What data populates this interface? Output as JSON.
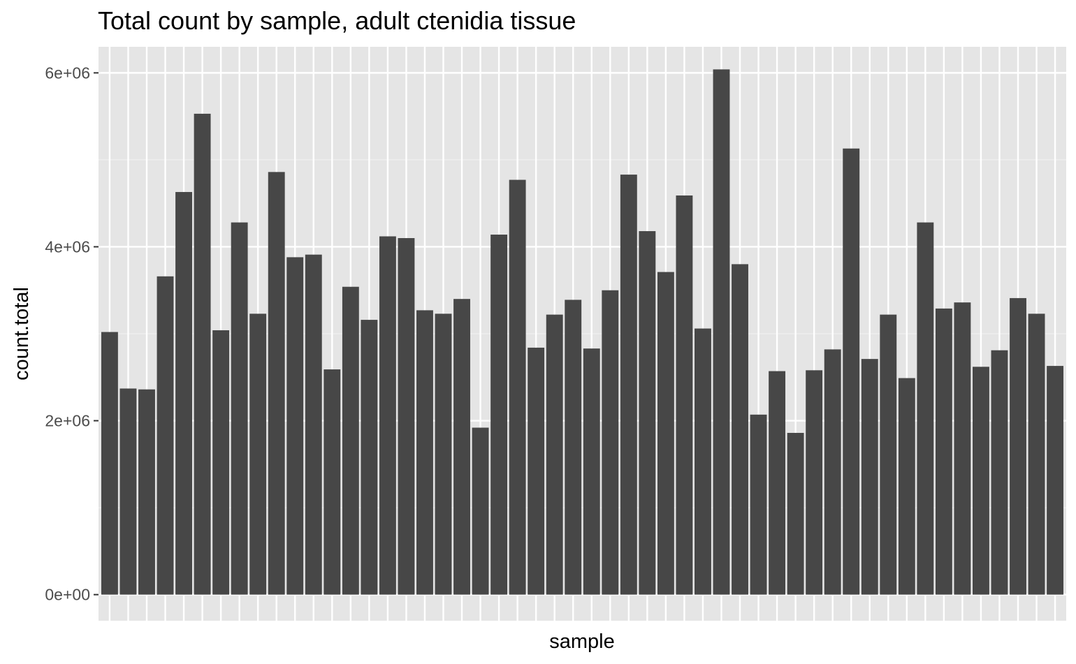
{
  "chart_data": {
    "type": "bar",
    "title": "Total count by sample, adult ctenidia tissue",
    "xlabel": "sample",
    "ylabel": "count.total",
    "ylim": [
      -300000,
      6300000
    ],
    "yticks": [
      0,
      2000000,
      4000000,
      6000000
    ],
    "ytick_labels": [
      "0e+00",
      "2e+06",
      "4e+06",
      "6e+06"
    ],
    "grid": true,
    "legend": "none",
    "colors": {
      "panel_background": "#e5e5e5",
      "grid_major": "#ffffff",
      "grid_minor": "#f0f0f0",
      "bar_fill": "#474747",
      "tick_text": "#4d4d4d",
      "tick_mark": "#333333"
    },
    "values": [
      3020000,
      2370000,
      2360000,
      3660000,
      4630000,
      5530000,
      3040000,
      4280000,
      3230000,
      4860000,
      3880000,
      3910000,
      2590000,
      3540000,
      3160000,
      4120000,
      4100000,
      3270000,
      3230000,
      3400000,
      1920000,
      4140000,
      4770000,
      2840000,
      3220000,
      3390000,
      2830000,
      3500000,
      4830000,
      4180000,
      3710000,
      4590000,
      3060000,
      6040000,
      3800000,
      2070000,
      2570000,
      1860000,
      2580000,
      2820000,
      5130000,
      2710000,
      3220000,
      2490000,
      4280000,
      3290000,
      3360000,
      2620000,
      2810000,
      3410000,
      3230000,
      2630000
    ]
  }
}
